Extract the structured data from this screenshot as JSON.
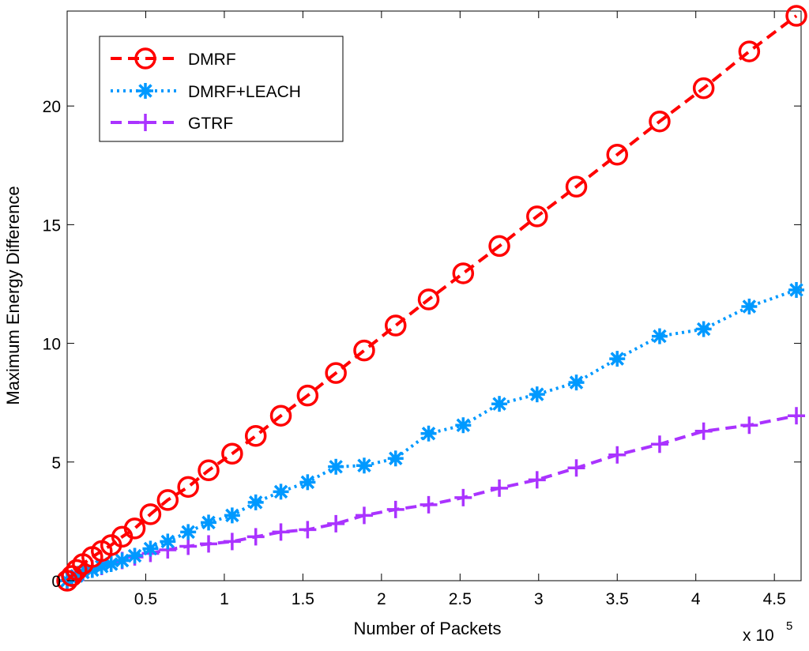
{
  "chart_data": {
    "type": "line",
    "title": "",
    "xlabel": "Number of Packets",
    "ylabel": "Maximum Energy Difference",
    "x_multiplier_label": "x 10",
    "x_multiplier_exp": "5",
    "xlim": [
      0,
      4.67
    ],
    "ylim": [
      0,
      24
    ],
    "xticks": [
      0.5,
      1,
      1.5,
      2,
      2.5,
      3,
      3.5,
      4,
      4.5
    ],
    "xtick_labels": [
      "0.5",
      "1",
      "1.5",
      "2",
      "2.5",
      "3",
      "3.5",
      "4",
      "4.5"
    ],
    "yticks": [
      0,
      5,
      10,
      15,
      20
    ],
    "ytick_labels": [
      "0",
      "5",
      "10",
      "15",
      "20"
    ],
    "legend_position": "top-left",
    "series": [
      {
        "name": "DMRF",
        "color": "#ff0000",
        "marker": "circle",
        "dash": "dashed",
        "x": [
          0.0,
          0.03,
          0.06,
          0.1,
          0.16,
          0.22,
          0.28,
          0.35,
          0.43,
          0.53,
          0.64,
          0.77,
          0.9,
          1.05,
          1.2,
          1.36,
          1.53,
          1.71,
          1.89,
          2.09,
          2.3,
          2.52,
          2.75,
          2.99,
          3.24,
          3.5,
          3.77,
          4.05,
          4.34,
          4.64
        ],
        "y": [
          0.0,
          0.2,
          0.45,
          0.7,
          1.0,
          1.25,
          1.5,
          1.85,
          2.2,
          2.8,
          3.4,
          3.95,
          4.65,
          5.35,
          6.1,
          6.95,
          7.8,
          8.75,
          9.7,
          10.75,
          11.85,
          12.95,
          14.1,
          15.35,
          16.6,
          17.95,
          19.35,
          20.75,
          22.3,
          23.8
        ]
      },
      {
        "name": "DMRF+LEACH",
        "color": "#0099ff",
        "marker": "star",
        "dash": "dotted",
        "x": [
          0.0,
          0.03,
          0.06,
          0.1,
          0.16,
          0.22,
          0.28,
          0.35,
          0.43,
          0.53,
          0.64,
          0.77,
          0.9,
          1.05,
          1.2,
          1.36,
          1.53,
          1.71,
          1.89,
          2.09,
          2.3,
          2.52,
          2.75,
          2.99,
          3.24,
          3.5,
          3.77,
          4.05,
          4.34,
          4.64
        ],
        "y": [
          0.0,
          0.1,
          0.2,
          0.35,
          0.45,
          0.6,
          0.7,
          0.85,
          1.05,
          1.35,
          1.65,
          2.05,
          2.45,
          2.75,
          3.3,
          3.75,
          4.15,
          4.8,
          4.85,
          5.15,
          6.2,
          6.55,
          7.45,
          7.85,
          8.35,
          9.35,
          10.3,
          10.6,
          11.55,
          12.25
        ]
      },
      {
        "name": "GTRF",
        "color": "#aa33ff",
        "marker": "plus",
        "dash": "dashed",
        "x": [
          0.0,
          0.03,
          0.06,
          0.1,
          0.16,
          0.22,
          0.28,
          0.35,
          0.43,
          0.53,
          0.64,
          0.77,
          0.9,
          1.05,
          1.2,
          1.36,
          1.53,
          1.71,
          1.89,
          2.09,
          2.3,
          2.52,
          2.75,
          2.99,
          3.24,
          3.5,
          3.77,
          4.05,
          4.34,
          4.64
        ],
        "y": [
          0.0,
          0.1,
          0.2,
          0.35,
          0.5,
          0.6,
          0.75,
          0.85,
          1.0,
          1.15,
          1.3,
          1.45,
          1.55,
          1.65,
          1.85,
          2.05,
          2.15,
          2.4,
          2.75,
          3.0,
          3.2,
          3.5,
          3.9,
          4.25,
          4.75,
          5.3,
          5.75,
          6.3,
          6.55,
          6.95
        ]
      }
    ]
  }
}
